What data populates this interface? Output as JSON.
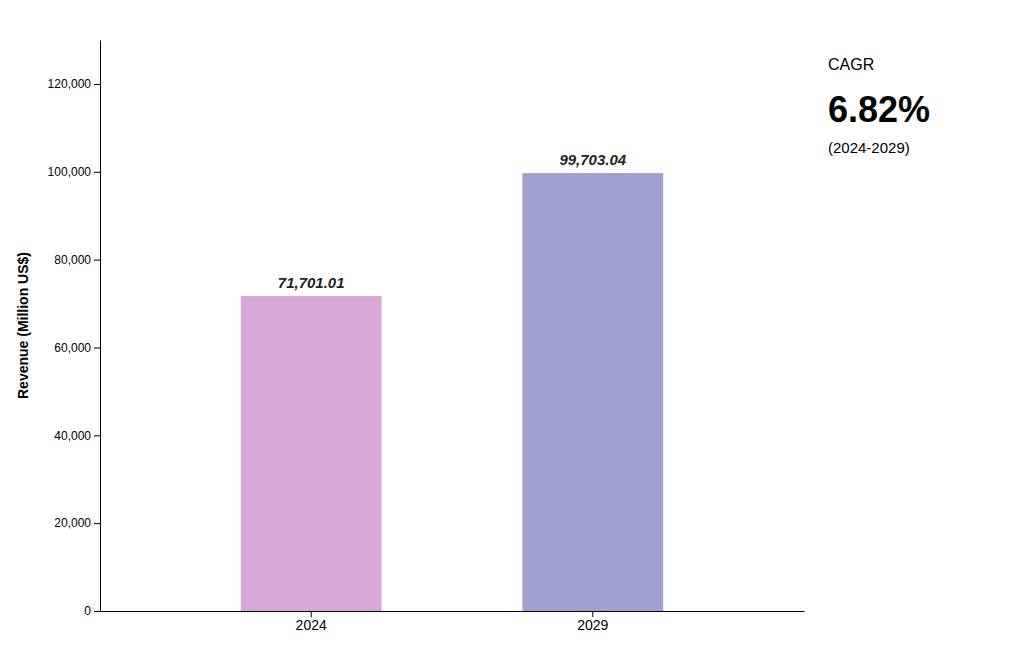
{
  "chart_data": {
    "type": "bar",
    "categories": [
      "2024",
      "2029"
    ],
    "values": [
      71701.01,
      99703.04
    ],
    "value_labels": [
      "71,701.01",
      "99,703.04"
    ],
    "data_labels": true,
    "colors": [
      "#D8A8D8",
      "#A0A0D0"
    ],
    "y_label": "Revenue (Million US$)",
    "ylim": [
      0,
      130000
    ],
    "yticks": [
      0,
      {
        "value": 20000,
        "label": "20,000"
      },
      {
        "value": 40000,
        "label": "40,000"
      },
      {
        "value": 60000,
        "label": "60,000"
      },
      {
        "value": 80000,
        "label": "80,000"
      },
      {
        "value": 100000,
        "label": "100,000"
      },
      {
        "value": 120000,
        "label": "120,000"
      }
    ],
    "grid": false,
    "annotations": [
      "CAGR",
      "6.82%",
      "(2024-2029)"
    ]
  }
}
